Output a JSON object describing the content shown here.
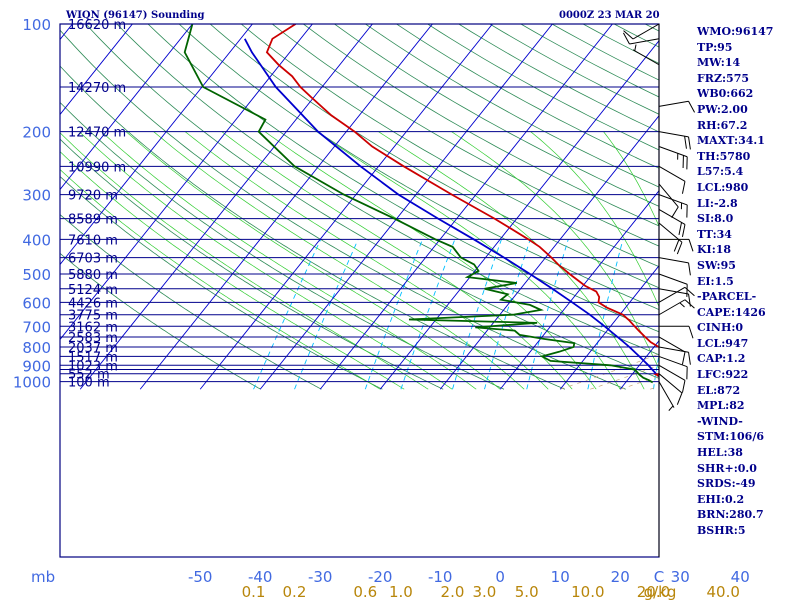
{
  "header": {
    "station": "WIQN (96147) Sounding",
    "time": "0000Z 23 MAR 20"
  },
  "indices": [
    "WMO:96147",
    "TP:95",
    "MW:14",
    "FRZ:575",
    "WB0:662",
    "PW:2.00",
    "RH:67.2",
    "MAXT:34.1",
    "TH:5780",
    "L57:5.4",
    "LCL:980",
    "LI:-2.8",
    "SI:8.0",
    "TT:34",
    "KI:18",
    "SW:95",
    "EI:1.5",
    "-PARCEL-",
    "CAPE:1426",
    "CINH:0",
    "LCL:947",
    "CAP:1.2",
    "LFC:922",
    "EL:872",
    "MPL:82",
    "-WIND-",
    "STM:106/6",
    "HEL:38",
    "SHR+:0.0",
    "SRDS:-49",
    "EHI:0.2",
    "BRN:280.7",
    "BSHR:5"
  ],
  "colors": {
    "isobar": "#00008b",
    "isotherm": "#0000cd",
    "dry_adiabat": "#2e8b57",
    "moist_adiabat": "#32cd32",
    "mixing_ratio": "#00bfff",
    "temperature": "#cc0000",
    "dewpoint": "#006400",
    "parcel": "#0000cd",
    "barb": "#000000",
    "axis_text": "#4169e1",
    "mixing_text": "#b8860b",
    "height_text": "#00008b"
  },
  "chart_data": {
    "type": "skew-t",
    "xlabel": "mb",
    "x_ticks": [
      "-50",
      "-40",
      "-30",
      "-20",
      "-10",
      "0",
      "10",
      "20",
      "30",
      "40",
      "C"
    ],
    "x_tick_temps": [
      -50,
      -40,
      -30,
      -20,
      -10,
      0,
      10,
      20,
      30,
      40
    ],
    "pressure_labels": [
      "100",
      "200",
      "300",
      "400",
      "500",
      "600",
      "700",
      "800",
      "900",
      "1000"
    ],
    "pressure_levels": [
      100,
      150,
      200,
      250,
      300,
      350,
      400,
      450,
      500,
      550,
      600,
      650,
      700,
      750,
      800,
      850,
      900,
      925,
      950,
      1000
    ],
    "height_labels": [
      {
        "p": 100,
        "text": "16620 m"
      },
      {
        "p": 150,
        "text": "14270 m"
      },
      {
        "p": 200,
        "text": "12470 m"
      },
      {
        "p": 250,
        "text": "10990 m"
      },
      {
        "p": 300,
        "text": "9720 m"
      },
      {
        "p": 350,
        "text": "8589 m"
      },
      {
        "p": 400,
        "text": "7610 m"
      },
      {
        "p": 450,
        "text": "6703 m"
      },
      {
        "p": 500,
        "text": "5880 m"
      },
      {
        "p": 550,
        "text": "5124 m"
      },
      {
        "p": 600,
        "text": "4426 m"
      },
      {
        "p": 650,
        "text": "3775 m"
      },
      {
        "p": 700,
        "text": "3162 m"
      },
      {
        "p": 750,
        "text": "2583 m"
      },
      {
        "p": 800,
        "text": "2037 m"
      },
      {
        "p": 850,
        "text": "1517 m"
      },
      {
        "p": 900,
        "text": "1023 m"
      },
      {
        "p": 950,
        "text": "552 m"
      },
      {
        "p": 1000,
        "text": "100 m"
      }
    ],
    "mixing_ratio_labels": [
      "0.1",
      "0.2",
      "0.6",
      "1.0",
      "2.0",
      "3.0",
      "5.0",
      "10.0",
      "20.0",
      "40.0",
      "g/kg"
    ],
    "mixing_ratio_values": [
      0.1,
      0.2,
      0.6,
      1.0,
      2.0,
      3.0,
      5.0,
      10.0,
      20.0,
      40.0
    ],
    "temperature_profile": [
      {
        "p": 1005,
        "t": 29.5
      },
      {
        "p": 990,
        "t": 27.0
      },
      {
        "p": 975,
        "t": 25.5
      },
      {
        "p": 955,
        "t": 24.0
      },
      {
        "p": 940,
        "t": 26.0
      },
      {
        "p": 925,
        "t": 24.5
      },
      {
        "p": 900,
        "t": 23.5
      },
      {
        "p": 880,
        "t": 23.8
      },
      {
        "p": 850,
        "t": 24.0
      },
      {
        "p": 825,
        "t": 22.8
      },
      {
        "p": 800,
        "t": 20.8
      },
      {
        "p": 775,
        "t": 18.8
      },
      {
        "p": 750,
        "t": 17.2
      },
      {
        "p": 725,
        "t": 15.6
      },
      {
        "p": 700,
        "t": 14.0
      },
      {
        "p": 675,
        "t": 12.4
      },
      {
        "p": 650,
        "t": 10.5
      },
      {
        "p": 620,
        "t": 6.8
      },
      {
        "p": 600,
        "t": 4.8
      },
      {
        "p": 580,
        "t": 4.2
      },
      {
        "p": 560,
        "t": 3.0
      },
      {
        "p": 540,
        "t": 0.4
      },
      {
        "p": 500,
        "t": -3.8
      },
      {
        "p": 470,
        "t": -7.0
      },
      {
        "p": 450,
        "t": -9.0
      },
      {
        "p": 420,
        "t": -12.4
      },
      {
        "p": 400,
        "t": -15.3
      },
      {
        "p": 350,
        "t": -23.7
      },
      {
        "p": 300,
        "t": -34.0
      },
      {
        "p": 250,
        "t": -45.8
      },
      {
        "p": 220,
        "t": -53.7
      },
      {
        "p": 200,
        "t": -58.6
      },
      {
        "p": 180,
        "t": -64.7
      },
      {
        "p": 160,
        "t": -70.5
      },
      {
        "p": 150,
        "t": -73.6
      },
      {
        "p": 140,
        "t": -76.4
      },
      {
        "p": 130,
        "t": -80.2
      },
      {
        "p": 120,
        "t": -83.8
      },
      {
        "p": 110,
        "t": -84.7
      },
      {
        "p": 100,
        "t": -82.8
      }
    ],
    "dewpoint_profile": [
      {
        "p": 1005,
        "t": 24.5
      },
      {
        "p": 990,
        "t": 23.5
      },
      {
        "p": 975,
        "t": 22.3
      },
      {
        "p": 955,
        "t": 21.2
      },
      {
        "p": 940,
        "t": 20.5
      },
      {
        "p": 925,
        "t": 19.8
      },
      {
        "p": 900,
        "t": 15.2
      },
      {
        "p": 875,
        "t": 4.6
      },
      {
        "p": 850,
        "t": 2.6
      },
      {
        "p": 825,
        "t": 4.8
      },
      {
        "p": 800,
        "t": 6.6
      },
      {
        "p": 780,
        "t": 6.2
      },
      {
        "p": 760,
        "t": 0.7
      },
      {
        "p": 740,
        "t": -4.0
      },
      {
        "p": 720,
        "t": -5.4
      },
      {
        "p": 705,
        "t": -12.4
      },
      {
        "p": 685,
        "t": -2.7
      },
      {
        "p": 670,
        "t": -24.5
      },
      {
        "p": 650,
        "t": -7.8
      },
      {
        "p": 630,
        "t": -3.8
      },
      {
        "p": 610,
        "t": -6.3
      },
      {
        "p": 590,
        "t": -11.8
      },
      {
        "p": 570,
        "t": -11.4
      },
      {
        "p": 550,
        "t": -16.0
      },
      {
        "p": 530,
        "t": -11.4
      },
      {
        "p": 510,
        "t": -20.4
      },
      {
        "p": 490,
        "t": -19.4
      },
      {
        "p": 470,
        "t": -21.0
      },
      {
        "p": 450,
        "t": -24.1
      },
      {
        "p": 420,
        "t": -26.9
      },
      {
        "p": 400,
        "t": -30.8
      },
      {
        "p": 350,
        "t": -40.4
      },
      {
        "p": 300,
        "t": -52.0
      },
      {
        "p": 250,
        "t": -64.0
      },
      {
        "p": 200,
        "t": -74.6
      },
      {
        "p": 185,
        "t": -75.1
      },
      {
        "p": 150,
        "t": -89.8
      },
      {
        "p": 120,
        "t": -97.5
      },
      {
        "p": 110,
        "t": -98.7
      },
      {
        "p": 100,
        "t": -100.0
      }
    ],
    "parcel_profile": [
      {
        "p": 1000,
        "t": 26.5
      },
      {
        "p": 950,
        "t": 23.9
      },
      {
        "p": 900,
        "t": 21.5
      },
      {
        "p": 850,
        "t": 18.8
      },
      {
        "p": 800,
        "t": 15.9
      },
      {
        "p": 750,
        "t": 12.6
      },
      {
        "p": 700,
        "t": 9.0
      },
      {
        "p": 650,
        "t": 5.0
      },
      {
        "p": 600,
        "t": 0.4
      },
      {
        "p": 550,
        "t": -4.7
      },
      {
        "p": 500,
        "t": -10.4
      },
      {
        "p": 450,
        "t": -16.9
      },
      {
        "p": 400,
        "t": -24.4
      },
      {
        "p": 350,
        "t": -33.1
      },
      {
        "p": 300,
        "t": -42.9
      },
      {
        "p": 250,
        "t": -53.0
      },
      {
        "p": 200,
        "t": -64.7
      },
      {
        "p": 150,
        "t": -77.7
      },
      {
        "p": 120,
        "t": -86.3
      },
      {
        "p": 110,
        "t": -89.3
      }
    ],
    "wind_barbs": [
      {
        "p": 100,
        "dir": 240,
        "kt": 10
      },
      {
        "p": 110,
        "dir": 260,
        "kt": 10
      },
      {
        "p": 130,
        "dir": 300,
        "kt": 5
      },
      {
        "p": 170,
        "dir": 80,
        "kt": 10
      },
      {
        "p": 200,
        "dir": 100,
        "kt": 20
      },
      {
        "p": 220,
        "dir": 110,
        "kt": 25
      },
      {
        "p": 250,
        "dir": 120,
        "kt": 10
      },
      {
        "p": 280,
        "dir": 140,
        "kt": 10
      },
      {
        "p": 300,
        "dir": 110,
        "kt": 15
      },
      {
        "p": 330,
        "dir": 120,
        "kt": 20
      },
      {
        "p": 360,
        "dir": 130,
        "kt": 20
      },
      {
        "p": 400,
        "dir": 90,
        "kt": 10
      },
      {
        "p": 450,
        "dir": 100,
        "kt": 10
      },
      {
        "p": 500,
        "dir": 110,
        "kt": 10
      },
      {
        "p": 550,
        "dir": 100,
        "kt": 10
      },
      {
        "p": 600,
        "dir": 60,
        "kt": 10
      },
      {
        "p": 650,
        "dir": 60,
        "kt": 15
      },
      {
        "p": 700,
        "dir": 90,
        "kt": 10
      },
      {
        "p": 750,
        "dir": 120,
        "kt": 10
      },
      {
        "p": 800,
        "dir": 100,
        "kt": 10
      },
      {
        "p": 850,
        "dir": 110,
        "kt": 10
      },
      {
        "p": 900,
        "dir": 120,
        "kt": 10
      },
      {
        "p": 950,
        "dir": 130,
        "kt": 10
      },
      {
        "p": 1000,
        "dir": 150,
        "kt": 5
      }
    ]
  }
}
